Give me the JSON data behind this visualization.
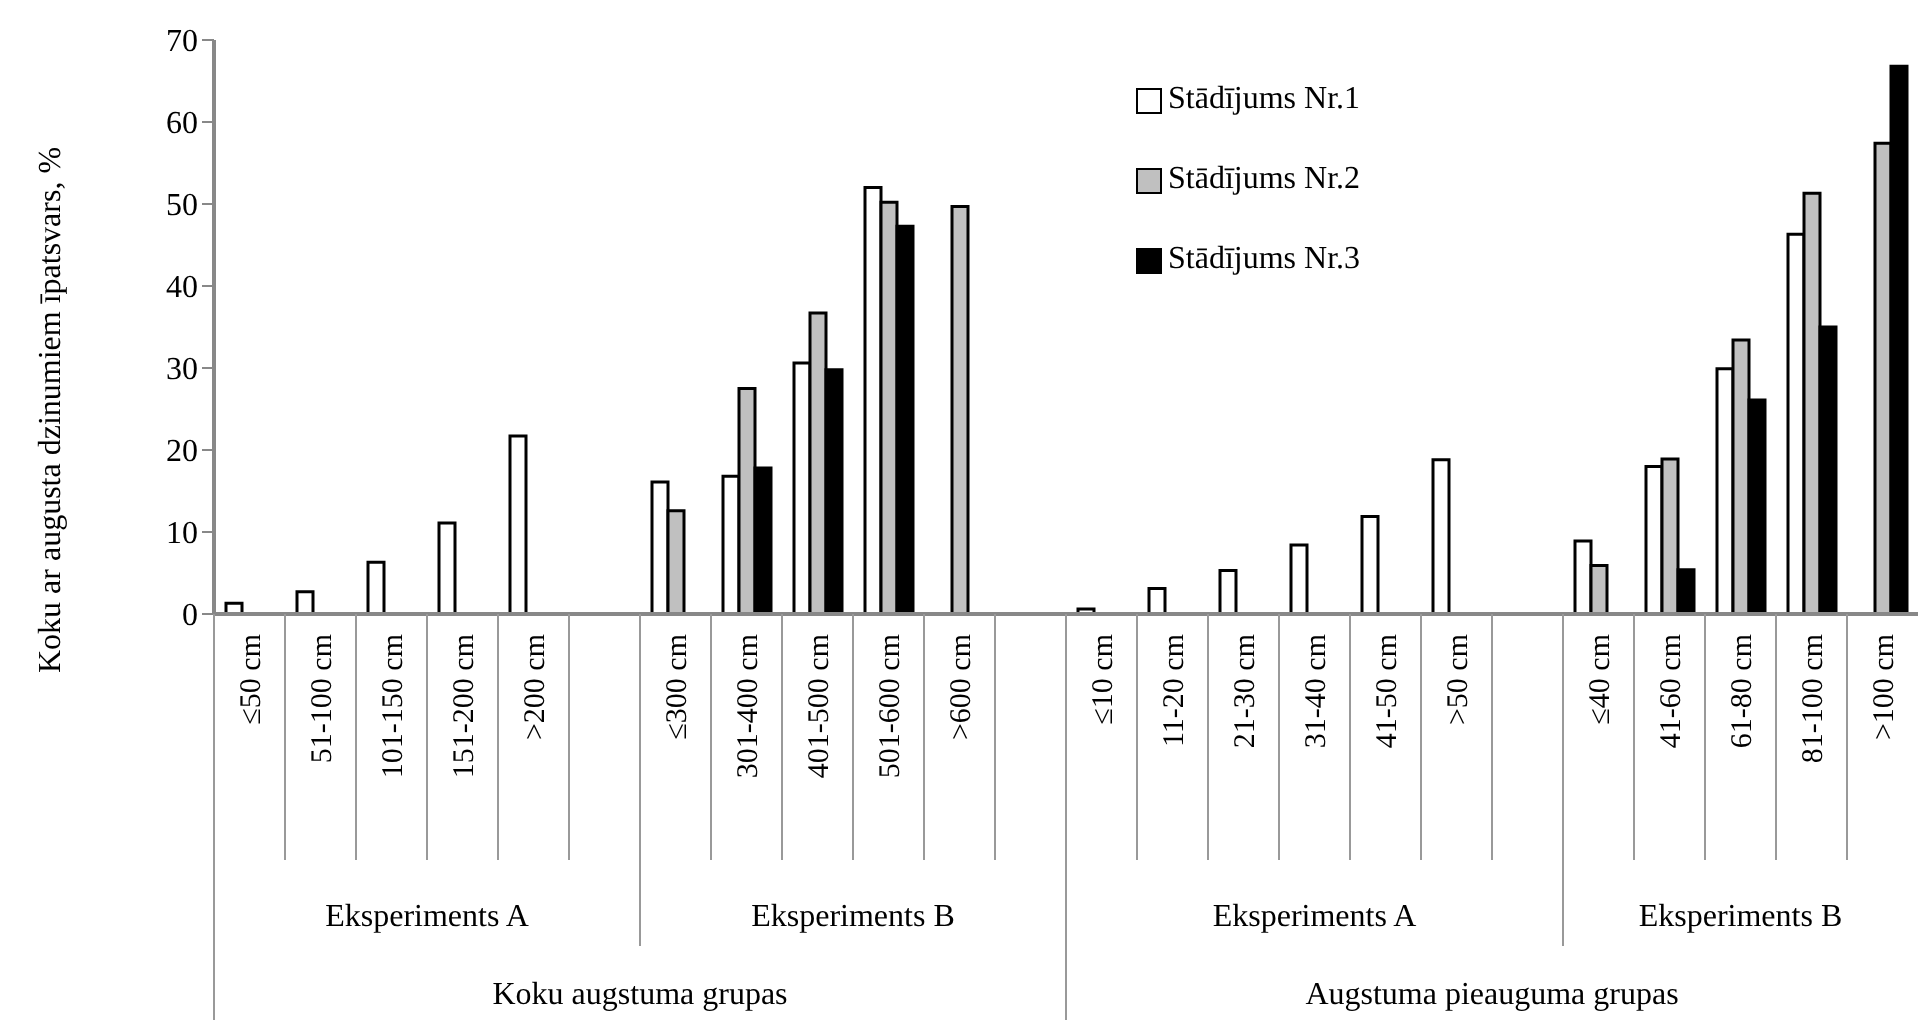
{
  "chart_data": {
    "type": "bar",
    "ylabel": "Koku ar augusta dzinumiem īpatsvars, %",
    "categories": [
      "≤50 cm",
      "51-100 cm",
      "101-150 cm",
      "151-200 cm",
      ">200 cm",
      null,
      "≤300 cm",
      "301-400 cm",
      "401-500 cm",
      "501-600 cm",
      ">600 cm",
      null,
      "≤10 cm",
      "11-20 cm",
      "21-30 cm",
      "31-40 cm",
      "41-50 cm",
      ">50 cm",
      null,
      "≤40 cm",
      "41-60 cm",
      "61-80 cm",
      "81-100 cm",
      ">100 cm"
    ],
    "series": [
      {
        "name": "Stādījums Nr.1",
        "color": "#ffffff",
        "values": [
          1.3,
          2.7,
          6.3,
          11.1,
          21.7,
          null,
          16.1,
          16.8,
          30.6,
          52.0,
          null,
          null,
          0.6,
          3.1,
          5.3,
          8.4,
          11.9,
          18.8,
          null,
          8.9,
          18.0,
          29.9,
          46.3,
          null
        ]
      },
      {
        "name": "Stādījums Nr.2",
        "color": "#c0c0c0",
        "values": [
          null,
          null,
          null,
          null,
          null,
          null,
          12.6,
          27.5,
          36.7,
          50.2,
          49.7,
          null,
          null,
          null,
          null,
          null,
          null,
          null,
          null,
          5.9,
          18.9,
          33.4,
          51.3,
          57.4
        ]
      },
      {
        "name": "Stādījums Nr.3",
        "color": "#000000",
        "values": [
          null,
          null,
          null,
          null,
          null,
          null,
          null,
          17.8,
          29.8,
          47.3,
          null,
          null,
          null,
          null,
          null,
          null,
          null,
          null,
          null,
          null,
          5.4,
          26.1,
          35.0,
          66.8
        ]
      }
    ],
    "ylim": [
      0,
      70
    ],
    "yticks": [
      0,
      10,
      20,
      30,
      40,
      50,
      60,
      70
    ],
    "grid": false,
    "legend": "top right",
    "annotations": [
      "Eksperiments A",
      "Eksperiments B",
      "Eksperiments A",
      "Eksperiments B",
      "Koku augstuma grupas",
      "Augstuma pieauguma grupas"
    ]
  }
}
